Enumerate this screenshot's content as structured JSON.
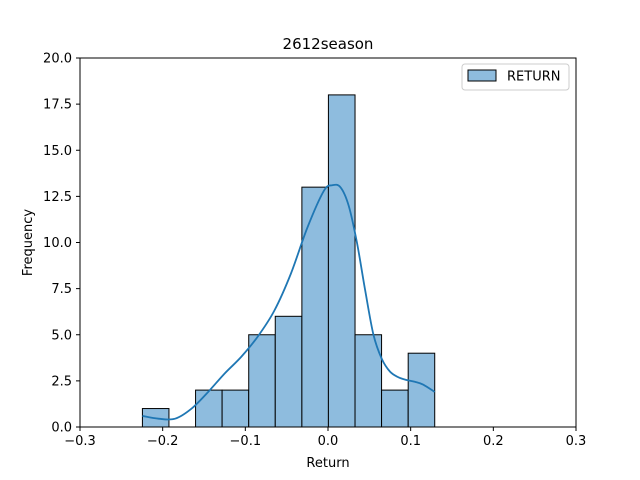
{
  "chart_data": {
    "type": "bar",
    "title": "2612season",
    "xlabel": "Return",
    "ylabel": "Frequency",
    "xlim": [
      -0.3,
      0.3
    ],
    "ylim": [
      0,
      20
    ],
    "x_ticks": [
      -0.3,
      -0.2,
      -0.1,
      0.0,
      0.1,
      0.2,
      0.3
    ],
    "x_tick_labels": [
      "−0.3",
      "−0.2",
      "−0.1",
      "0.0",
      "0.1",
      "0.2",
      "0.3"
    ],
    "y_ticks": [
      0,
      2.5,
      5,
      7.5,
      10,
      12.5,
      15,
      17.5,
      20
    ],
    "y_tick_labels": [
      "0.0",
      "2.5",
      "5.0",
      "7.5",
      "10.0",
      "12.5",
      "15.0",
      "17.5",
      "20.0"
    ],
    "legend": {
      "label": "RETURN",
      "placement": "top-right"
    },
    "grid": false,
    "bin_edges": [
      -0.2245,
      -0.1924,
      -0.1602,
      -0.1281,
      -0.0959,
      -0.0638,
      -0.0316,
      0.0005,
      0.0327,
      0.0648,
      0.097,
      0.1291
    ],
    "series": [
      {
        "name": "RETURN",
        "values": [
          1,
          0,
          2,
          2,
          5,
          6,
          13,
          18,
          5,
          2,
          4
        ]
      }
    ],
    "kde": {
      "x": [
        -0.2245,
        -0.205,
        -0.185,
        -0.165,
        -0.145,
        -0.125,
        -0.105,
        -0.085,
        -0.065,
        -0.045,
        -0.025,
        -0.005,
        0.005,
        0.015,
        0.025,
        0.035,
        0.045,
        0.055,
        0.065,
        0.075,
        0.085,
        0.095,
        0.105,
        0.115,
        0.1291
      ],
      "y": [
        0.6,
        0.45,
        0.45,
        1.0,
        1.9,
        2.9,
        3.8,
        4.9,
        6.3,
        8.3,
        10.8,
        12.8,
        13.1,
        13.0,
        12.0,
        10.0,
        7.4,
        5.0,
        3.7,
        3.0,
        2.7,
        2.55,
        2.45,
        2.3,
        1.9
      ]
    },
    "colors": {
      "bar_fill": "#8ebcde",
      "bar_edge": "#000000",
      "kde_line": "#1f77b4"
    }
  }
}
